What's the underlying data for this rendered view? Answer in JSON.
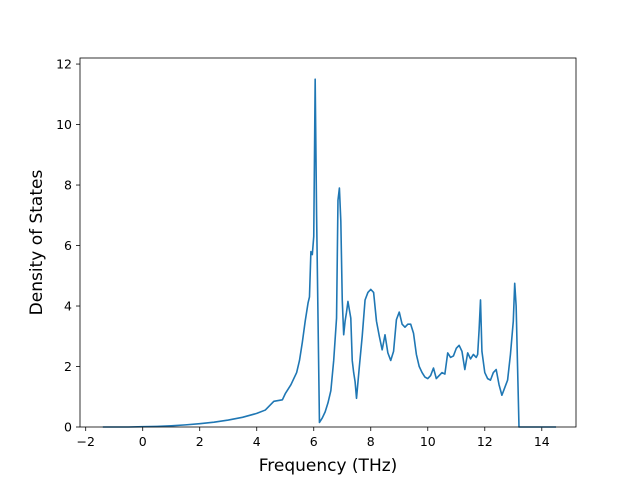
{
  "chart_data": {
    "type": "line",
    "title": "",
    "xlabel": "Frequency (THz)",
    "ylabel": "Density of States",
    "xlim": [
      -2.2,
      15.2
    ],
    "ylim": [
      0,
      12.2
    ],
    "xticks": [
      -2,
      0,
      2,
      4,
      6,
      8,
      10,
      12,
      14
    ],
    "yticks": [
      0,
      2,
      4,
      6,
      8,
      10,
      12
    ],
    "grid": false,
    "series": [
      {
        "color": "#1f77b4",
        "x": [
          -1.4,
          -1.0,
          -0.5,
          0.0,
          0.5,
          1.0,
          1.5,
          2.0,
          2.5,
          3.0,
          3.5,
          4.0,
          4.3,
          4.6,
          4.9,
          5.0,
          5.2,
          5.4,
          5.5,
          5.6,
          5.7,
          5.75,
          5.8,
          5.85,
          5.9,
          5.95,
          6.0,
          6.05,
          6.1,
          6.2,
          6.3,
          6.4,
          6.5,
          6.6,
          6.7,
          6.8,
          6.85,
          6.9,
          6.95,
          7.0,
          7.05,
          7.1,
          7.15,
          7.2,
          7.3,
          7.35,
          7.4,
          7.45,
          7.5,
          7.6,
          7.7,
          7.8,
          7.9,
          8.0,
          8.1,
          8.2,
          8.3,
          8.4,
          8.5,
          8.6,
          8.7,
          8.8,
          8.9,
          9.0,
          9.1,
          9.2,
          9.3,
          9.4,
          9.5,
          9.6,
          9.7,
          9.8,
          9.9,
          10.0,
          10.1,
          10.2,
          10.3,
          10.4,
          10.5,
          10.6,
          10.7,
          10.8,
          10.9,
          11.0,
          11.1,
          11.2,
          11.3,
          11.4,
          11.5,
          11.6,
          11.7,
          11.75,
          11.8,
          11.85,
          11.9,
          12.0,
          12.1,
          12.2,
          12.3,
          12.4,
          12.5,
          12.6,
          12.7,
          12.8,
          12.9,
          13.0,
          13.05,
          13.1,
          13.15,
          13.2,
          13.5,
          14.0,
          14.5
        ],
        "y": [
          0,
          0,
          0,
          0.01,
          0.02,
          0.04,
          0.07,
          0.11,
          0.16,
          0.23,
          0.32,
          0.45,
          0.56,
          0.85,
          0.9,
          1.1,
          1.4,
          1.8,
          2.2,
          2.8,
          3.5,
          3.8,
          4.1,
          4.3,
          5.8,
          5.7,
          6.3,
          11.5,
          7.0,
          0.15,
          0.3,
          0.5,
          0.8,
          1.2,
          2.2,
          3.6,
          7.5,
          7.9,
          6.8,
          4.2,
          3.05,
          3.5,
          3.8,
          4.15,
          3.6,
          2.2,
          1.8,
          1.5,
          0.95,
          2.0,
          3.0,
          4.2,
          4.45,
          4.55,
          4.45,
          3.5,
          3.0,
          2.55,
          3.05,
          2.45,
          2.2,
          2.5,
          3.55,
          3.8,
          3.4,
          3.3,
          3.4,
          3.4,
          3.1,
          2.4,
          2.0,
          1.8,
          1.65,
          1.6,
          1.7,
          1.95,
          1.6,
          1.7,
          1.8,
          1.75,
          2.45,
          2.3,
          2.35,
          2.6,
          2.7,
          2.5,
          1.9,
          2.45,
          2.25,
          2.4,
          2.3,
          2.4,
          3.2,
          4.2,
          2.5,
          1.8,
          1.6,
          1.55,
          1.8,
          1.9,
          1.4,
          1.05,
          1.3,
          1.55,
          2.4,
          3.5,
          4.75,
          4.0,
          2.0,
          0,
          0,
          0,
          0
        ]
      }
    ]
  }
}
